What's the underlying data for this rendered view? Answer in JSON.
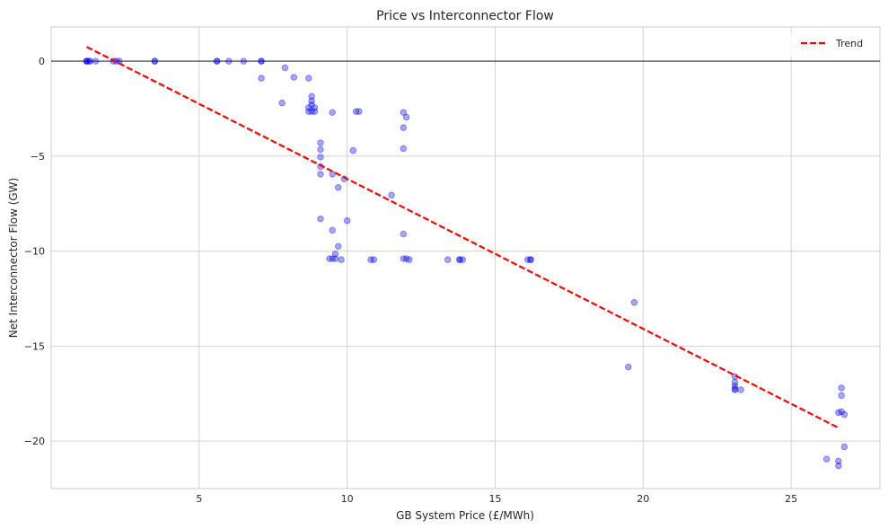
{
  "chart_data": {
    "type": "scatter",
    "title": "Price vs Interconnector Flow",
    "xlabel": "GB System Price (£/MWh)",
    "ylabel": "Net Interconnector Flow (GW)",
    "xlim": [
      0,
      28
    ],
    "ylim": [
      -22.5,
      1.8
    ],
    "xticks": [
      5,
      10,
      15,
      20,
      25
    ],
    "yticks": [
      0,
      -5,
      -10,
      -15,
      -20
    ],
    "xtick_labels": [
      "5",
      "10",
      "15",
      "20",
      "25"
    ],
    "ytick_labels": [
      "0",
      "−5",
      "−10",
      "−15",
      "−20"
    ],
    "grid": true,
    "zero_line": true,
    "legend": {
      "placement": "top-right",
      "entries": [
        {
          "label": "Trend"
        }
      ]
    },
    "colors": {
      "points": "#0000ff",
      "trend": "#ff0000"
    },
    "series": [
      {
        "kind": "points",
        "x": [
          1.2,
          1.2,
          1.3,
          1.3,
          1.2,
          1.5,
          2.1,
          2.2,
          2.3,
          3.5,
          3.5,
          5.6,
          5.6,
          6,
          6.5,
          7.1,
          7.1,
          7.9,
          7.1,
          8.2,
          8.7,
          8.8,
          8.8,
          8.8,
          8.9,
          8.7,
          8.7,
          8.8,
          8.9,
          9.5,
          10.3,
          10.4,
          7.8,
          11.9,
          12,
          11.9,
          11.9,
          9.1,
          9.1,
          9.1,
          9.1,
          9.1,
          9.5,
          9.9,
          9.7,
          10.2,
          11.5,
          9.1,
          10,
          9.5,
          9.7,
          9.6,
          9.4,
          9.5,
          9.6,
          9.8,
          10.8,
          10.9,
          11.9,
          12,
          12.1,
          11.9,
          13.4,
          13.8,
          13.8,
          13.9,
          16.1,
          16.2,
          16.2,
          19.7,
          19.5,
          23.1,
          23.1,
          23.1,
          23.1,
          23.1,
          23.3,
          26.7,
          26.7,
          26.6,
          26.7,
          26.8,
          26.8,
          26.2,
          26.6,
          26.6
        ],
        "y": [
          0,
          0,
          0,
          0,
          0,
          0,
          0,
          0,
          0,
          0,
          0,
          0,
          0,
          0,
          0,
          0,
          0,
          -0.35,
          -0.9,
          -0.85,
          -0.9,
          -1.85,
          -2.1,
          -2.3,
          -2.45,
          -2.45,
          -2.65,
          -2.65,
          -2.65,
          -2.7,
          -2.65,
          -2.65,
          -2.2,
          -2.7,
          -2.95,
          -3.5,
          -4.6,
          -4.3,
          -4.65,
          -5.05,
          -5.55,
          -5.95,
          -5.95,
          -6.2,
          -6.65,
          -4.7,
          -7.05,
          -8.3,
          -8.4,
          -8.9,
          -9.75,
          -10.15,
          -10.4,
          -10.4,
          -10.4,
          -10.45,
          -10.45,
          -10.45,
          -9.1,
          -10.4,
          -10.45,
          -10.4,
          -10.45,
          -10.45,
          -10.45,
          -10.45,
          -10.45,
          -10.45,
          -10.45,
          -12.7,
          -16.1,
          -16.6,
          -16.9,
          -17.1,
          -17.25,
          -17.3,
          -17.3,
          -17.2,
          -17.6,
          -18.5,
          -18.45,
          -18.6,
          -20.3,
          -20.95,
          -21.05,
          -21.3
        ],
        "trend": {
          "label": "Trend",
          "x": [
            1.2,
            26.6
          ],
          "y": [
            0.75,
            -19.3
          ]
        }
      }
    ]
  }
}
